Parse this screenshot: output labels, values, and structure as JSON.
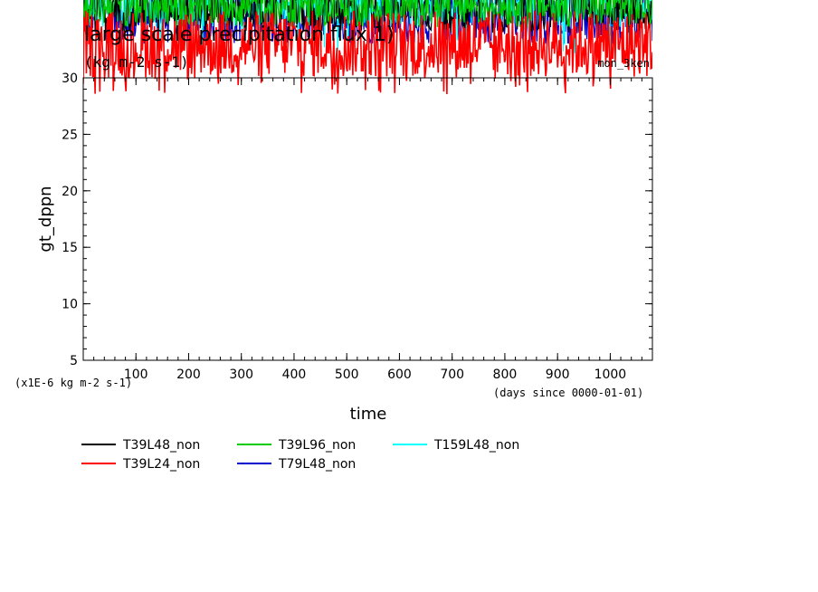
{
  "chart_data": {
    "type": "line",
    "title": "large scale precipitation flux 1)",
    "units": "(kg m-2 s-1)",
    "tag": "mon_3ken",
    "xlabel": "time",
    "xunits": "(days since 0000-01-01)",
    "ylabel": "gt_dppn",
    "yunits": "(x1E-6 kg m-2 s-1)",
    "xlim": [
      0,
      1080
    ],
    "ylim": [
      5,
      30
    ],
    "xticks": [
      100,
      200,
      300,
      400,
      500,
      600,
      700,
      800,
      900,
      1000
    ],
    "yticks": [
      5,
      10,
      15,
      20,
      25,
      30
    ],
    "series": [
      {
        "name": "T39L48_non",
        "color": "#000000",
        "base": 36,
        "amp": 2,
        "min_dip": 34
      },
      {
        "name": "T39L24_non",
        "color": "#ff0000",
        "base": 33,
        "amp": 3,
        "min_dip": 28.5
      },
      {
        "name": "T39L96_non",
        "color": "#00cc00",
        "base": 36.5,
        "amp": 2,
        "min_dip": 34.5
      },
      {
        "name": "T79L48_non",
        "color": "#0000cc",
        "base": 35.5,
        "amp": 2.5,
        "min_dip": 33
      },
      {
        "name": "T159L48_non",
        "color": "#00ffff",
        "base": 36.5,
        "amp": 2,
        "min_dip": 32
      }
    ],
    "legend_position": "bottom"
  }
}
